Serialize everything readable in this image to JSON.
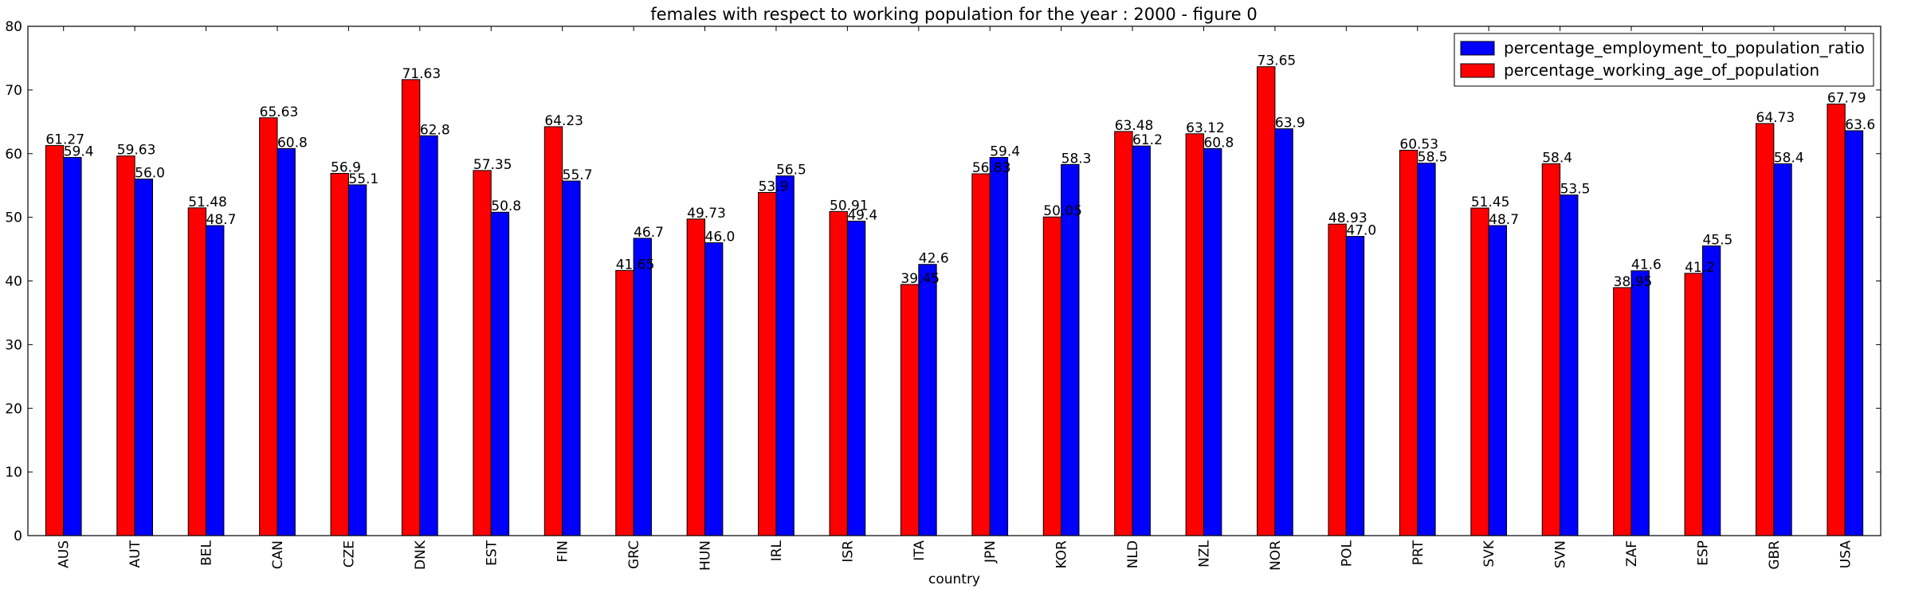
{
  "chart_data": {
    "type": "bar",
    "title": "females with respect to working population for the year : 2000 - figure 0",
    "xlabel": "country",
    "ylabel": "",
    "ylim": [
      0,
      80
    ],
    "yticks": [
      0,
      10,
      20,
      30,
      40,
      50,
      60,
      70,
      80
    ],
    "grid": false,
    "legend_position": "top-right",
    "categories": [
      "AUS",
      "AUT",
      "BEL",
      "CAN",
      "CZE",
      "DNK",
      "EST",
      "FIN",
      "GRC",
      "HUN",
      "IRL",
      "ISR",
      "ITA",
      "JPN",
      "KOR",
      "NLD",
      "NZL",
      "NOR",
      "POL",
      "PRT",
      "SVK",
      "SVN",
      "ZAF",
      "ESP",
      "GBR",
      "USA"
    ],
    "series": [
      {
        "name": "percentage_working_age_of_population",
        "color": "#ff0000",
        "values": [
          61.27,
          59.63,
          51.48,
          65.63,
          56.9,
          71.63,
          57.35,
          64.23,
          41.65,
          49.73,
          53.9,
          50.91,
          39.45,
          56.83,
          50.05,
          63.48,
          63.12,
          73.65,
          48.93,
          60.53,
          51.45,
          58.4,
          38.95,
          41.2,
          64.73,
          67.79
        ],
        "labels": [
          "61.27",
          "59.63",
          "51.48",
          "65.63",
          "56.9",
          "71.63",
          "57.35",
          "64.23",
          "41.65",
          "49.73",
          "53.9",
          "50.91",
          "39.45",
          "56.83",
          "50.05",
          "63.48",
          "63.12",
          "73.65",
          "48.93",
          "60.53",
          "51.45",
          "58.4",
          "38.95",
          "41.2",
          "64.73",
          "67.79"
        ]
      },
      {
        "name": "percentage_employment_to_population_ratio",
        "color": "#0000ff",
        "values": [
          59.4,
          56.0,
          48.7,
          60.8,
          55.1,
          62.8,
          50.8,
          55.7,
          46.7,
          46.0,
          56.5,
          49.4,
          42.6,
          59.4,
          58.3,
          61.2,
          60.8,
          63.9,
          47.0,
          58.5,
          48.7,
          53.5,
          41.6,
          45.5,
          58.4,
          63.6
        ],
        "labels": [
          "59.4",
          "56.0",
          "48.7",
          "60.8",
          "55.1",
          "62.8",
          "50.8",
          "55.7",
          "46.7",
          "46.0",
          "56.5",
          "49.4",
          "42.6",
          "59.4",
          "58.3",
          "61.2",
          "60.8",
          "63.9",
          "47.0",
          "58.5",
          "48.7",
          "53.5",
          "41.6",
          "45.5",
          "58.4",
          "63.6"
        ]
      }
    ],
    "legend_order": [
      1,
      0
    ]
  }
}
